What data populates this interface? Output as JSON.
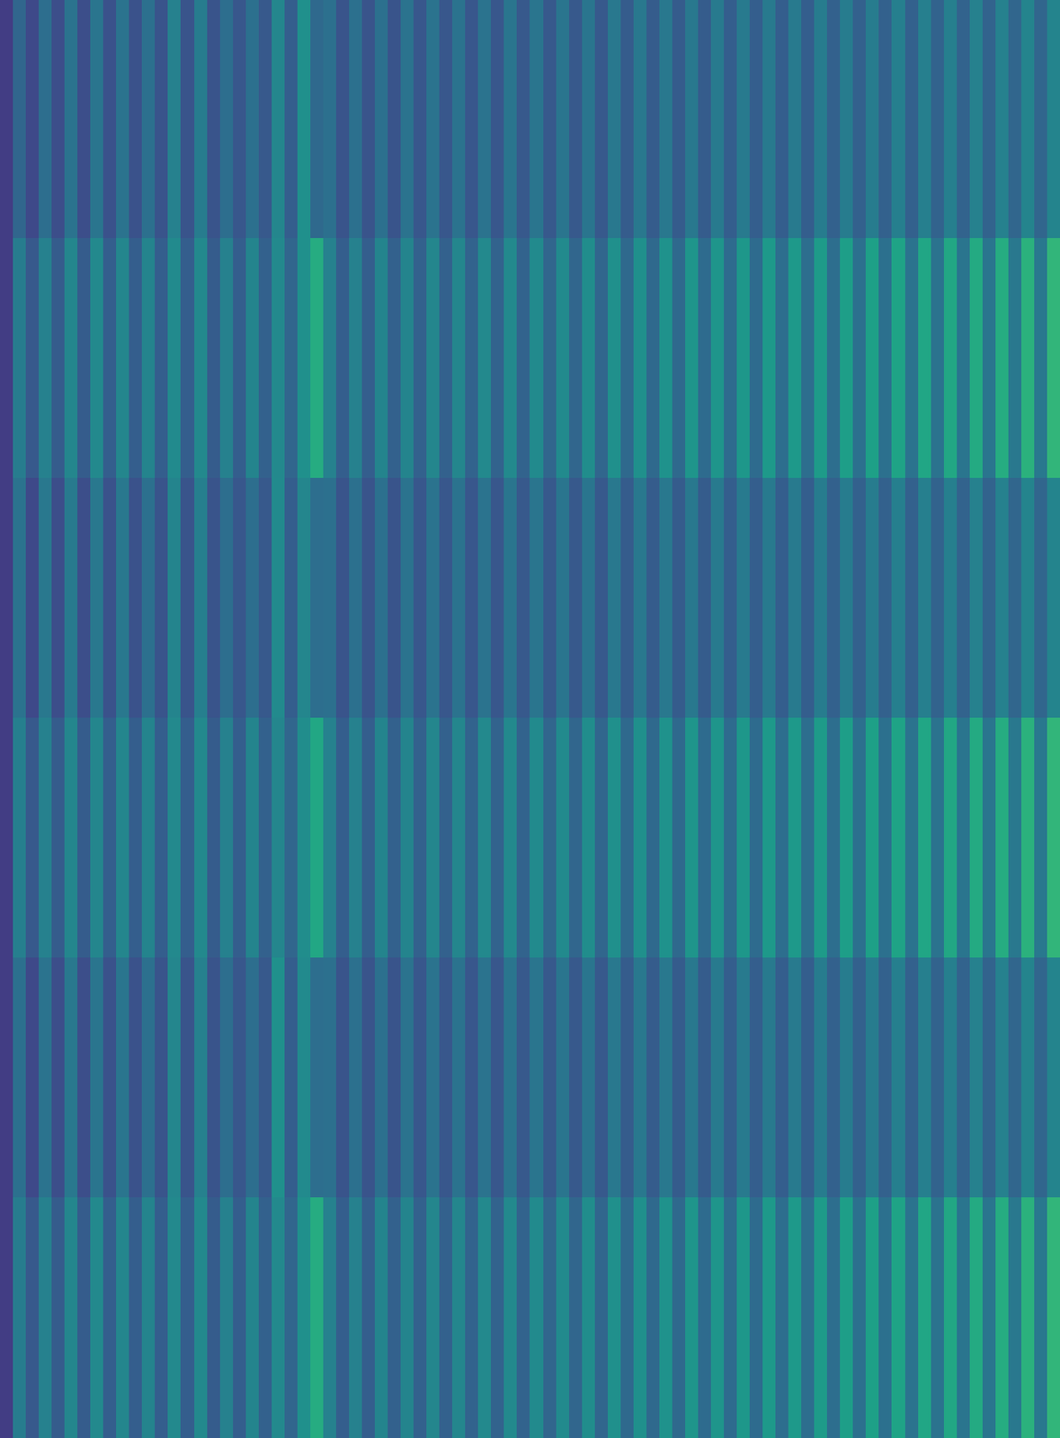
{
  "chart_data": {
    "type": "heatmap",
    "color": "viridis",
    "zlim": [
      0,
      1
    ],
    "tick_labels": false,
    "cells": [
      [
        0.18,
        0.33,
        0.22,
        0.36,
        0.24,
        0.38,
        0.24,
        0.39,
        0.25,
        0.38,
        0.25,
        0.37,
        0.26,
        0.44,
        0.26,
        0.42,
        0.26,
        0.36,
        0.27,
        0.37,
        0.28,
        0.46,
        0.3,
        0.5,
        0.34,
        0.37,
        0.26,
        0.37,
        0.26,
        0.37,
        0.26,
        0.38,
        0.27,
        0.38,
        0.27,
        0.38,
        0.27,
        0.38,
        0.27,
        0.39,
        0.28,
        0.39,
        0.28,
        0.39,
        0.28,
        0.39,
        0.28,
        0.4,
        0.29,
        0.4,
        0.29,
        0.4,
        0.29,
        0.4,
        0.29,
        0.41,
        0.3,
        0.41,
        0.3,
        0.41,
        0.3,
        0.41,
        0.3,
        0.42,
        0.31,
        0.42,
        0.31,
        0.42,
        0.31,
        0.43,
        0.31,
        0.43,
        0.32,
        0.43,
        0.32,
        0.44,
        0.32,
        0.44,
        0.33,
        0.45,
        0.33,
        0.45
      ],
      [
        0.18,
        0.42,
        0.28,
        0.44,
        0.29,
        0.46,
        0.29,
        0.47,
        0.3,
        0.46,
        0.3,
        0.45,
        0.3,
        0.48,
        0.3,
        0.47,
        0.29,
        0.44,
        0.3,
        0.45,
        0.31,
        0.47,
        0.33,
        0.5,
        0.62,
        0.44,
        0.3,
        0.44,
        0.3,
        0.45,
        0.31,
        0.45,
        0.31,
        0.46,
        0.31,
        0.46,
        0.32,
        0.47,
        0.32,
        0.47,
        0.32,
        0.48,
        0.33,
        0.48,
        0.33,
        0.49,
        0.33,
        0.5,
        0.34,
        0.5,
        0.34,
        0.51,
        0.34,
        0.52,
        0.35,
        0.52,
        0.35,
        0.53,
        0.35,
        0.54,
        0.36,
        0.54,
        0.36,
        0.55,
        0.36,
        0.56,
        0.37,
        0.57,
        0.37,
        0.58,
        0.38,
        0.59,
        0.38,
        0.6,
        0.39,
        0.61,
        0.39,
        0.62,
        0.4,
        0.64,
        0.4,
        0.66
      ],
      [
        0.18,
        0.38,
        0.22,
        0.4,
        0.24,
        0.41,
        0.24,
        0.4,
        0.25,
        0.4,
        0.25,
        0.37,
        0.26,
        0.45,
        0.26,
        0.43,
        0.26,
        0.36,
        0.27,
        0.36,
        0.28,
        0.48,
        0.3,
        0.46,
        0.36,
        0.37,
        0.26,
        0.37,
        0.26,
        0.37,
        0.26,
        0.38,
        0.27,
        0.38,
        0.27,
        0.38,
        0.27,
        0.38,
        0.27,
        0.39,
        0.28,
        0.39,
        0.28,
        0.39,
        0.28,
        0.39,
        0.28,
        0.4,
        0.29,
        0.4,
        0.29,
        0.4,
        0.29,
        0.4,
        0.29,
        0.41,
        0.3,
        0.41,
        0.3,
        0.41,
        0.3,
        0.41,
        0.3,
        0.42,
        0.31,
        0.42,
        0.31,
        0.42,
        0.31,
        0.43,
        0.31,
        0.43,
        0.32,
        0.43,
        0.32,
        0.44,
        0.32,
        0.44,
        0.33,
        0.45,
        0.33,
        0.45
      ],
      [
        0.18,
        0.43,
        0.28,
        0.44,
        0.29,
        0.46,
        0.29,
        0.46,
        0.3,
        0.46,
        0.3,
        0.45,
        0.3,
        0.47,
        0.3,
        0.47,
        0.29,
        0.44,
        0.3,
        0.45,
        0.31,
        0.46,
        0.33,
        0.49,
        0.6,
        0.44,
        0.3,
        0.44,
        0.3,
        0.45,
        0.31,
        0.45,
        0.31,
        0.46,
        0.31,
        0.46,
        0.32,
        0.47,
        0.32,
        0.47,
        0.32,
        0.48,
        0.33,
        0.48,
        0.33,
        0.49,
        0.33,
        0.5,
        0.34,
        0.5,
        0.34,
        0.51,
        0.34,
        0.52,
        0.35,
        0.52,
        0.35,
        0.53,
        0.35,
        0.54,
        0.36,
        0.54,
        0.36,
        0.55,
        0.36,
        0.56,
        0.37,
        0.57,
        0.37,
        0.58,
        0.38,
        0.59,
        0.38,
        0.6,
        0.39,
        0.61,
        0.39,
        0.62,
        0.4,
        0.64,
        0.4,
        0.66
      ],
      [
        0.18,
        0.37,
        0.22,
        0.38,
        0.24,
        0.4,
        0.24,
        0.39,
        0.25,
        0.39,
        0.25,
        0.37,
        0.26,
        0.46,
        0.26,
        0.44,
        0.26,
        0.36,
        0.27,
        0.36,
        0.28,
        0.5,
        0.3,
        0.48,
        0.36,
        0.37,
        0.26,
        0.37,
        0.26,
        0.37,
        0.26,
        0.38,
        0.27,
        0.38,
        0.27,
        0.38,
        0.27,
        0.38,
        0.27,
        0.39,
        0.28,
        0.39,
        0.28,
        0.39,
        0.28,
        0.39,
        0.28,
        0.4,
        0.29,
        0.4,
        0.29,
        0.4,
        0.29,
        0.4,
        0.29,
        0.41,
        0.3,
        0.41,
        0.3,
        0.41,
        0.3,
        0.41,
        0.3,
        0.42,
        0.31,
        0.42,
        0.31,
        0.42,
        0.31,
        0.43,
        0.31,
        0.43,
        0.32,
        0.43,
        0.32,
        0.44,
        0.32,
        0.44,
        0.33,
        0.45,
        0.33,
        0.45
      ],
      [
        0.18,
        0.42,
        0.28,
        0.44,
        0.29,
        0.46,
        0.29,
        0.47,
        0.3,
        0.46,
        0.3,
        0.45,
        0.3,
        0.47,
        0.3,
        0.47,
        0.29,
        0.44,
        0.3,
        0.45,
        0.31,
        0.47,
        0.33,
        0.5,
        0.62,
        0.44,
        0.3,
        0.44,
        0.3,
        0.45,
        0.31,
        0.45,
        0.31,
        0.46,
        0.31,
        0.46,
        0.32,
        0.47,
        0.32,
        0.47,
        0.32,
        0.48,
        0.33,
        0.48,
        0.33,
        0.49,
        0.33,
        0.5,
        0.34,
        0.5,
        0.34,
        0.51,
        0.34,
        0.52,
        0.35,
        0.52,
        0.35,
        0.53,
        0.35,
        0.54,
        0.36,
        0.54,
        0.36,
        0.55,
        0.36,
        0.56,
        0.37,
        0.57,
        0.37,
        0.58,
        0.38,
        0.59,
        0.38,
        0.6,
        0.39,
        0.61,
        0.39,
        0.62,
        0.4,
        0.64,
        0.4,
        0.66
      ]
    ]
  }
}
